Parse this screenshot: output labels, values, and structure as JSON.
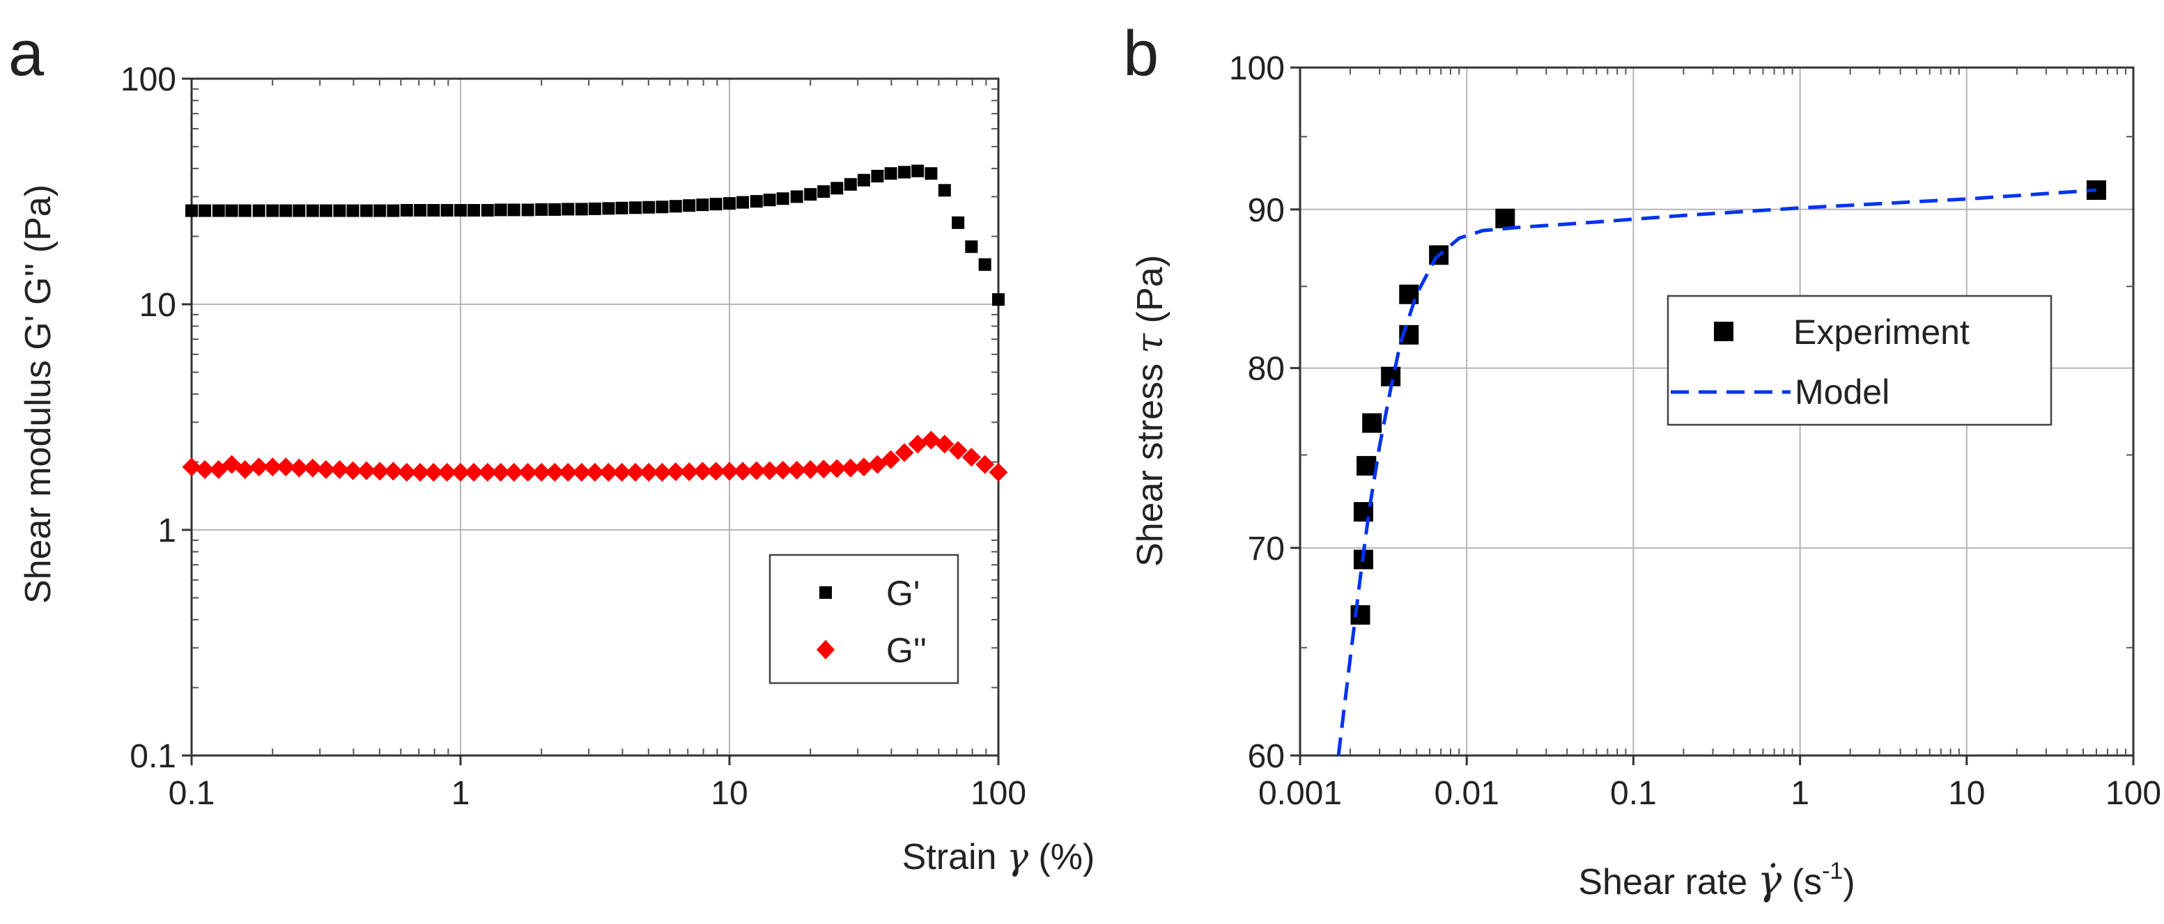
{
  "chart_data": [
    {
      "panel": "a",
      "type": "scatter",
      "xscale": "log",
      "yscale": "log",
      "xlim": [
        0.1,
        100
      ],
      "ylim": [
        0.1,
        100
      ],
      "xticks": [
        "0.1",
        "1",
        "10",
        "100"
      ],
      "yticks": [
        "0.1",
        "1",
        "10",
        "100"
      ],
      "xlabel_prefix": "Strain ",
      "xlabel_symbol": "γ",
      "xlabel_suffix": " (%)",
      "ylabel": "Shear modulus G' G'' (Pa)",
      "legend_position": "bottom-right",
      "grid": true,
      "series": [
        {
          "name": "G'",
          "marker": "square",
          "color": "#000000",
          "x": [
            0.1,
            0.112,
            0.126,
            0.141,
            0.158,
            0.178,
            0.2,
            0.224,
            0.251,
            0.282,
            0.316,
            0.355,
            0.398,
            0.447,
            0.501,
            0.562,
            0.631,
            0.708,
            0.794,
            0.891,
            1.0,
            1.12,
            1.26,
            1.41,
            1.58,
            1.78,
            2.0,
            2.24,
            2.51,
            2.82,
            3.16,
            3.55,
            3.98,
            4.47,
            5.01,
            5.62,
            6.31,
            7.08,
            7.94,
            8.91,
            10.0,
            11.2,
            12.6,
            14.1,
            15.8,
            17.8,
            20.0,
            22.4,
            25.1,
            28.2,
            31.6,
            35.5,
            39.8,
            44.7,
            50.1,
            56.2,
            63.1,
            70.8,
            79.4,
            89.1,
            100
          ],
          "y": [
            26.0,
            26.0,
            26.0,
            26.0,
            26.0,
            26.0,
            26.0,
            26.0,
            26.0,
            26.0,
            26.0,
            26.0,
            26.0,
            26.0,
            26.0,
            26.0,
            26.1,
            26.1,
            26.1,
            26.1,
            26.1,
            26.1,
            26.1,
            26.2,
            26.2,
            26.2,
            26.3,
            26.3,
            26.4,
            26.4,
            26.5,
            26.6,
            26.7,
            26.8,
            26.9,
            27.0,
            27.2,
            27.4,
            27.6,
            27.8,
            28.0,
            28.3,
            28.6,
            29.0,
            29.4,
            30.0,
            30.7,
            31.6,
            32.7,
            34.0,
            35.5,
            37.0,
            38.0,
            38.5,
            39.0,
            38.0,
            32.0,
            23.0,
            18.0,
            15.0,
            10.5
          ]
        },
        {
          "name": "G''",
          "marker": "diamond",
          "color": "#ff0000",
          "x": [
            0.1,
            0.112,
            0.126,
            0.141,
            0.158,
            0.178,
            0.2,
            0.224,
            0.251,
            0.282,
            0.316,
            0.355,
            0.398,
            0.447,
            0.501,
            0.562,
            0.631,
            0.708,
            0.794,
            0.891,
            1.0,
            1.12,
            1.26,
            1.41,
            1.58,
            1.78,
            2.0,
            2.24,
            2.51,
            2.82,
            3.16,
            3.55,
            3.98,
            4.47,
            5.01,
            5.62,
            6.31,
            7.08,
            7.94,
            8.91,
            10.0,
            11.2,
            12.6,
            14.1,
            15.8,
            17.8,
            20.0,
            22.4,
            25.1,
            28.2,
            31.6,
            35.5,
            39.8,
            44.7,
            50.1,
            56.2,
            63.1,
            70.8,
            79.4,
            89.1,
            100
          ],
          "y": [
            1.9,
            1.85,
            1.85,
            1.95,
            1.85,
            1.9,
            1.9,
            1.9,
            1.88,
            1.88,
            1.85,
            1.85,
            1.83,
            1.83,
            1.82,
            1.82,
            1.8,
            1.8,
            1.8,
            1.8,
            1.8,
            1.8,
            1.8,
            1.8,
            1.8,
            1.8,
            1.8,
            1.8,
            1.8,
            1.8,
            1.8,
            1.8,
            1.8,
            1.8,
            1.8,
            1.8,
            1.81,
            1.81,
            1.82,
            1.82,
            1.82,
            1.82,
            1.83,
            1.83,
            1.84,
            1.84,
            1.85,
            1.86,
            1.87,
            1.88,
            1.9,
            1.95,
            2.05,
            2.2,
            2.4,
            2.5,
            2.4,
            2.25,
            2.1,
            1.95,
            1.8
          ]
        }
      ]
    },
    {
      "panel": "b",
      "type": "scatter+line",
      "xscale": "log",
      "yscale": "log",
      "xlim": [
        0.001,
        100
      ],
      "ylim": [
        60,
        100
      ],
      "xticks": [
        "0.001",
        "0.01",
        "0.1",
        "1",
        "10",
        "100"
      ],
      "yticks": [
        "60",
        "70",
        "80",
        "90",
        "100"
      ],
      "xlabel_prefix": "Shear rate ",
      "xlabel_symbol": "γ̇",
      "xlabel_suffix_base": " (s",
      "xlabel_suffix_sup": "-1",
      "xlabel_suffix_end": ")",
      "ylabel_prefix": "Shear stress ",
      "ylabel_symbol": "τ",
      "ylabel_suffix": " (Pa)",
      "legend_position": "center-right",
      "grid": true,
      "series": [
        {
          "name": "Experiment",
          "marker": "square",
          "color": "#000000",
          "x": [
            0.0023,
            0.0024,
            0.0024,
            0.0025,
            0.0025,
            0.0027,
            0.0035,
            0.0045,
            0.0045,
            0.0068,
            0.017,
            60
          ],
          "y": [
            66.6,
            69.4,
            71.9,
            74.4,
            74.4,
            76.8,
            79.5,
            82.0,
            84.5,
            87.0,
            89.4,
            91.3
          ]
        },
        {
          "name": "Model",
          "style": "dashed",
          "color": "#0033ee",
          "x": [
            0.0017,
            0.002,
            0.0023,
            0.0026,
            0.003,
            0.0035,
            0.004,
            0.005,
            0.0065,
            0.009,
            0.0125,
            0.02,
            0.05,
            0.2,
            1,
            10,
            60
          ],
          "y": [
            60.0,
            64.5,
            68.5,
            72.0,
            75.5,
            78.8,
            81.5,
            84.5,
            86.8,
            88.1,
            88.6,
            88.8,
            89.1,
            89.6,
            90.1,
            90.7,
            91.3
          ]
        }
      ]
    }
  ]
}
